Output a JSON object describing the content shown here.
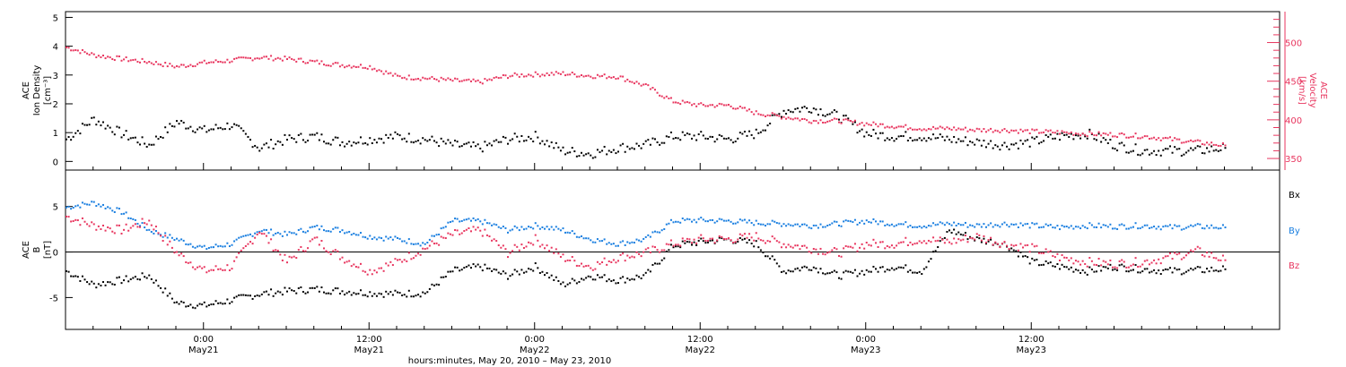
{
  "chart_data": [
    {
      "type": "scatter",
      "panel": "plasma",
      "ylabel_left": [
        "ACE",
        "Ion Density",
        "[cm⁻³]"
      ],
      "ylabel_right": [
        "ACE",
        "Velocity",
        "[km/s]"
      ],
      "ylim_left": [
        -0.3,
        5.2
      ],
      "yticks_left": [
        "0",
        "1",
        "2",
        "3",
        "4",
        "5"
      ],
      "ylim_right": [
        335,
        540
      ],
      "yticks_right": [
        "350",
        "400",
        "450",
        "500"
      ],
      "series": [
        {
          "axis": "left",
          "color": "#000000",
          "x": [
            0,
            2,
            4,
            6,
            8,
            10,
            12,
            14,
            16,
            18,
            20,
            22,
            24,
            26,
            28,
            30,
            32,
            34,
            36,
            38,
            40,
            42,
            44,
            46,
            48,
            50,
            52,
            54,
            56,
            58,
            60,
            62,
            64,
            66,
            68,
            70,
            72,
            74,
            76,
            78,
            80,
            82,
            84
          ],
          "y": [
            0.8,
            1.5,
            1.0,
            0.6,
            1.4,
            1.1,
            1.3,
            0.5,
            0.8,
            0.9,
            0.7,
            0.8,
            0.9,
            0.8,
            0.6,
            0.5,
            0.8,
            0.9,
            0.4,
            0.3,
            0.5,
            0.6,
            0.9,
            0.9,
            0.8,
            1.0,
            1.8,
            1.9,
            1.6,
            1.0,
            0.9,
            0.9,
            0.8,
            0.7,
            0.6,
            0.7,
            0.9,
            1.0,
            0.6,
            0.4,
            0.4,
            0.4,
            0.5
          ]
        },
        {
          "axis": "right",
          "color": "#e8365f",
          "x": [
            0,
            2,
            4,
            6,
            8,
            10,
            12,
            14,
            16,
            18,
            20,
            22,
            24,
            26,
            28,
            30,
            32,
            34,
            36,
            38,
            40,
            42,
            44,
            46,
            48,
            50,
            52,
            54,
            56,
            58,
            60,
            62,
            64,
            66,
            68,
            70,
            72,
            74,
            76,
            78,
            80,
            82,
            84
          ],
          "y": [
            495,
            485,
            480,
            476,
            470,
            475,
            478,
            482,
            480,
            476,
            472,
            470,
            457,
            455,
            452,
            450,
            458,
            460,
            461,
            458,
            457,
            445,
            425,
            420,
            420,
            410,
            405,
            400,
            400,
            396,
            393,
            390,
            390,
            388,
            388,
            386,
            385,
            383,
            382,
            380,
            376,
            372,
            368
          ]
        }
      ]
    },
    {
      "type": "scatter",
      "panel": "magnetic-field",
      "ylabel_left": [
        "ACE",
        "B",
        "[nT]"
      ],
      "ylim": [
        -8.5,
        9
      ],
      "yticks": [
        "-5",
        "0",
        "5"
      ],
      "series": [
        {
          "name": "Bx",
          "color": "#000000",
          "x": [
            0,
            2,
            4,
            6,
            8,
            10,
            12,
            14,
            16,
            18,
            20,
            22,
            24,
            26,
            28,
            30,
            32,
            34,
            36,
            38,
            40,
            42,
            44,
            46,
            48,
            50,
            52,
            54,
            56,
            58,
            60,
            62,
            64,
            66,
            68,
            70,
            72,
            74,
            76,
            78,
            80,
            82,
            84
          ],
          "y": [
            -2.0,
            -3.5,
            -3.0,
            -2.5,
            -5.5,
            -5.8,
            -5.2,
            -4.5,
            -4.2,
            -4.0,
            -4.2,
            -4.4,
            -4.5,
            -4.4,
            -2.0,
            -1.5,
            -2.5,
            -1.5,
            -3.5,
            -2.5,
            -3.0,
            -2.5,
            0.8,
            1.2,
            1.5,
            1.0,
            -2.0,
            -1.5,
            -2.5,
            -2.0,
            -1.5,
            -2.0,
            2.5,
            1.5,
            1.0,
            -1.0,
            -1.5,
            -2.0,
            -1.5,
            -1.8,
            -2.0,
            -1.9,
            -1.8
          ]
        },
        {
          "name": "By",
          "color": "#1a7fe0",
          "x": [
            0,
            2,
            4,
            6,
            8,
            10,
            12,
            14,
            16,
            18,
            20,
            22,
            24,
            26,
            28,
            30,
            32,
            34,
            36,
            38,
            40,
            42,
            44,
            46,
            48,
            50,
            52,
            54,
            56,
            58,
            60,
            62,
            64,
            66,
            68,
            70,
            72,
            74,
            76,
            78,
            80,
            82,
            84
          ],
          "y": [
            5.0,
            5.5,
            4.5,
            2.5,
            1.5,
            0.5,
            1.0,
            2.5,
            2.0,
            2.8,
            2.5,
            1.8,
            1.5,
            1.0,
            3.5,
            3.5,
            2.5,
            3.0,
            2.5,
            1.5,
            1.0,
            1.5,
            3.5,
            3.6,
            3.5,
            3.3,
            3.2,
            3.0,
            3.2,
            3.5,
            3.2,
            3.0,
            3.2,
            3.0,
            3.2,
            3.0,
            2.8,
            3.0,
            2.9,
            3.0,
            2.8,
            2.9,
            2.8
          ]
        },
        {
          "name": "Bz",
          "color": "#e8365f",
          "x": [
            0,
            2,
            4,
            6,
            8,
            10,
            12,
            14,
            16,
            18,
            20,
            22,
            24,
            26,
            28,
            30,
            32,
            34,
            36,
            38,
            40,
            42,
            44,
            46,
            48,
            50,
            52,
            54,
            56,
            58,
            60,
            62,
            64,
            66,
            68,
            70,
            72,
            74,
            76,
            78,
            80,
            82,
            84
          ],
          "y": [
            4.0,
            3.0,
            2.5,
            3.5,
            0.0,
            -2.0,
            -1.5,
            2.5,
            -1.0,
            1.5,
            -0.5,
            -2.0,
            -1.0,
            0.5,
            2.0,
            2.5,
            0.0,
            1.5,
            -0.5,
            -1.5,
            -0.5,
            0.0,
            1.0,
            1.5,
            1.5,
            1.8,
            1.0,
            0.5,
            0.0,
            1.0,
            1.0,
            1.5,
            1.2,
            1.8,
            1.0,
            0.5,
            -0.5,
            -1.0,
            -1.2,
            -1.0,
            -0.5,
            0.2,
            -0.8
          ]
        }
      ]
    }
  ],
  "xaxis": {
    "xlim_hours": [
      0,
      88
    ],
    "ticks": [
      {
        "hour": 10,
        "time": "0:00",
        "date": "May21"
      },
      {
        "hour": 22,
        "time": "12:00",
        "date": "May21"
      },
      {
        "hour": 34,
        "time": "0:00",
        "date": "May22"
      },
      {
        "hour": 46,
        "time": "12:00",
        "date": "May22"
      },
      {
        "hour": 58,
        "time": "0:00",
        "date": "May23"
      },
      {
        "hour": 70,
        "time": "12:00",
        "date": "May23"
      }
    ],
    "xlabel": "hours:minutes, May 20, 2010 – May 23, 2010"
  },
  "legend": [
    "Bx",
    "By",
    "Bz"
  ],
  "colors": {
    "black": "#000000",
    "red": "#e8365f",
    "blue": "#1a7fe0"
  }
}
